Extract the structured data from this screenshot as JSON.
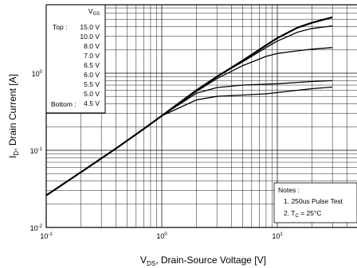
{
  "chart_data": {
    "type": "line",
    "title": "",
    "xlabel": "VDS, Drain-Source Voltage [V]",
    "ylabel": "ID, Drain Current [A]",
    "xlabel_parts": {
      "main": "V",
      "sub": "DS",
      "rest": ", Drain-Source Voltage [V]"
    },
    "ylabel_parts": {
      "main": "I",
      "sub": "D",
      "rest": ", Drain Current [A]"
    },
    "x_scale": "log",
    "y_scale": "log",
    "xlim": [
      0.1,
      30
    ],
    "ylim": [
      0.01,
      7
    ],
    "x_ticks": [
      {
        "value": 0.1,
        "base": "10",
        "exp": "-1"
      },
      {
        "value": 1,
        "base": "10",
        "exp": "0"
      },
      {
        "value": 10,
        "base": "10",
        "exp": "1"
      }
    ],
    "y_ticks": [
      {
        "value": 0.01,
        "base": "10",
        "exp": "-2"
      },
      {
        "value": 0.1,
        "base": "10",
        "exp": "-1"
      },
      {
        "value": 1,
        "base": "10",
        "exp": "0"
      }
    ],
    "grid": true,
    "legend": {
      "placement": "top-left",
      "header": {
        "main": "V",
        "sub": "GS"
      },
      "top_label": "Top :",
      "bottom_label": "Bottom :",
      "entries": [
        "15.0 V",
        "10.0 V",
        "8.0 V",
        "7.0 V",
        "6.5 V",
        "6.0 V",
        "5.5 V",
        "5.0 V",
        "4.5 V"
      ]
    },
    "notes": {
      "placement": "bottom-right",
      "title": "Notes :",
      "line1": "1. 250us Pulse Test",
      "line2_prefix": "2. T",
      "line2_sub": "C",
      "line2_rest": " = 25°C"
    },
    "series": [
      {
        "x": [
          0.1,
          0.2,
          0.4,
          0.7,
          1,
          2,
          3,
          5,
          8,
          10,
          15,
          20,
          30
        ],
        "values": [
          0.026,
          0.052,
          0.105,
          0.19,
          0.28,
          0.6,
          0.9,
          1.45,
          2.3,
          2.85,
          3.9,
          4.5,
          5.3
        ]
      },
      {
        "x": [
          0.1,
          0.2,
          0.4,
          0.7,
          1,
          2,
          3,
          5,
          8,
          10,
          15,
          20,
          30
        ],
        "values": [
          0.026,
          0.052,
          0.105,
          0.19,
          0.28,
          0.6,
          0.9,
          1.4,
          2.15,
          2.6,
          3.4,
          3.8,
          4.1
        ]
      },
      {
        "x": [
          0.1,
          0.2,
          0.4,
          0.7,
          1,
          2,
          3,
          5,
          8,
          10,
          15,
          20,
          30
        ],
        "values": [
          0.026,
          0.052,
          0.105,
          0.19,
          0.28,
          0.58,
          0.85,
          1.25,
          1.65,
          1.8,
          1.95,
          2.05,
          2.15
        ]
      },
      {
        "x": [
          0.1,
          0.2,
          0.4,
          0.7,
          1,
          2,
          3,
          5,
          8,
          10,
          15,
          20,
          30
        ],
        "values": [
          0.026,
          0.052,
          0.105,
          0.19,
          0.28,
          0.55,
          0.65,
          0.7,
          0.72,
          0.73,
          0.76,
          0.78,
          0.8
        ]
      },
      {
        "x": [
          0.1,
          0.2,
          0.4,
          0.7,
          1,
          2,
          3,
          5,
          8,
          10,
          15,
          20,
          30
        ],
        "values": [
          0.026,
          0.052,
          0.105,
          0.19,
          0.28,
          0.45,
          0.5,
          0.52,
          0.54,
          0.56,
          0.6,
          0.63,
          0.66
        ]
      }
    ]
  }
}
